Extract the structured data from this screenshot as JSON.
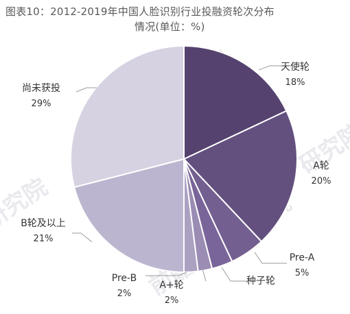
{
  "title": "图表10：2012-2019年中国人脸识别行业投融资轮次分布",
  "subtitle": "情况(单位：%)",
  "watermarks": [
    "前瞻产业研究院",
    "前瞻产业研究院",
    "研究院",
    "研究院"
  ],
  "chart_data": {
    "type": "pie",
    "unit": "%",
    "start_angle": "12 o'clock",
    "direction": "clockwise",
    "slices": [
      {
        "label": "天使轮",
        "value": 18,
        "value_text": "18%",
        "color": "#55426f"
      },
      {
        "label": "A轮",
        "value": 20,
        "value_text": "20%",
        "color": "#63507f"
      },
      {
        "label": "Pre-A",
        "value": 5,
        "value_text": "5%",
        "color": "#735f90"
      },
      {
        "label": "种子轮",
        "value": 3,
        "value_text": "",
        "color": "#7a659a"
      },
      {
        "label": "A+轮",
        "value": 2,
        "value_text": "2%",
        "color": "#9a8cb3"
      },
      {
        "label": "Pre-B",
        "value": 2,
        "value_text": "2%",
        "color": "#aba1c1"
      },
      {
        "label": "B轮及以上",
        "value": 21,
        "value_text": "21%",
        "color": "#bcb5cf"
      },
      {
        "label": "尚未获投",
        "value": 29,
        "value_text": "29%",
        "color": "#d6d2e1"
      }
    ]
  }
}
